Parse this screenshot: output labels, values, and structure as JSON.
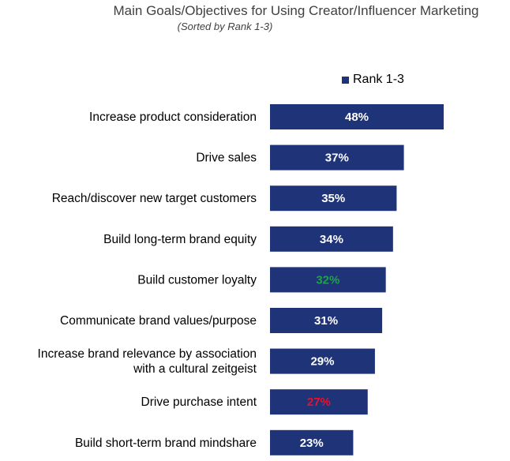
{
  "chart_data": {
    "type": "bar",
    "orientation": "horizontal",
    "title": "Main Goals/Objectives for Using Creator/Influencer Marketing",
    "subtitle": "(Sorted by Rank 1-3)",
    "legend": {
      "position": "top-right",
      "entries": [
        "Rank 1-3"
      ]
    },
    "bar_color": "#1f3379",
    "grid": false,
    "xlim": [
      0,
      48
    ],
    "series": [
      {
        "name": "Rank 1-3",
        "values": [
          48,
          37,
          35,
          34,
          32,
          31,
          29,
          27,
          23
        ]
      }
    ],
    "categories": [
      [
        "Increase product consideration"
      ],
      [
        "Drive sales"
      ],
      [
        "Reach/discover new target customers"
      ],
      [
        "Build long-term brand equity"
      ],
      [
        "Build customer loyalty"
      ],
      [
        "Communicate brand values/purpose"
      ],
      [
        "Increase brand relevance by association",
        "with a cultural zeitgeist"
      ],
      [
        "Drive purchase intent"
      ],
      [
        "Build short-term brand mindshare"
      ]
    ],
    "data_labels": [
      "48%",
      "37%",
      "35%",
      "34%",
      "32%",
      "31%",
      "29%",
      "27%",
      "23%"
    ],
    "data_label_colors": [
      "#ffffff",
      "#ffffff",
      "#ffffff",
      "#ffffff",
      "#22a04a",
      "#ffffff",
      "#ffffff",
      "#e8112d",
      "#ffffff"
    ]
  }
}
